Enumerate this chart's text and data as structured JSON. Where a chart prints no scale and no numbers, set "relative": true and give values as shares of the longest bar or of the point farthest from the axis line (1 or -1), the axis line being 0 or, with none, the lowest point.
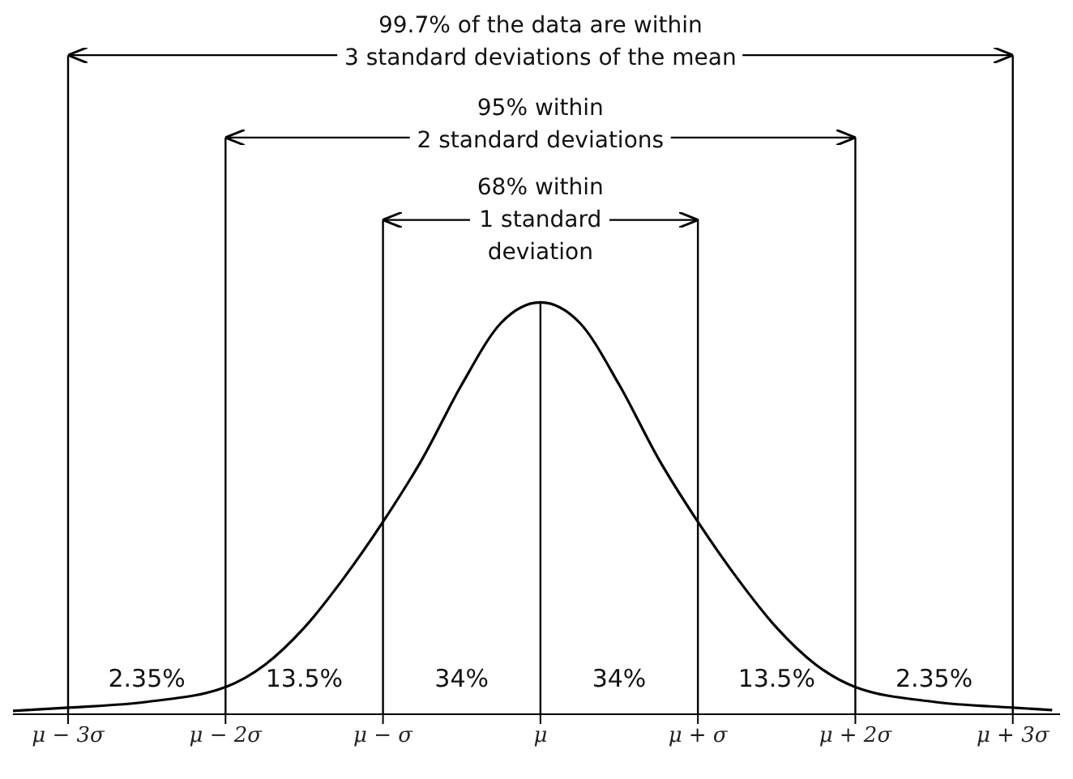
{
  "chart_data": {
    "type": "line",
    "relative": true,
    "marker": "none",
    "grid": false,
    "legend": false,
    "x": [
      -3.35,
      -3,
      -2.5,
      -2,
      -1.75,
      -1.5,
      -1.25,
      -1,
      -0.75,
      -0.5,
      -0.25,
      0,
      0.25,
      0.5,
      0.75,
      1,
      1.25,
      1.5,
      1.75,
      2,
      2.5,
      3,
      3.25
    ],
    "series": [
      {
        "color": "#000000",
        "values": [
          0.008,
          0.016,
          0.03,
          0.066,
          0.12,
          0.21,
          0.33,
          0.467,
          0.62,
          0.8,
          0.95,
          1,
          0.95,
          0.8,
          0.62,
          0.467,
          0.33,
          0.21,
          0.12,
          0.066,
          0.03,
          0.016,
          0.01
        ]
      }
    ],
    "xlim": [
      -3.35,
      3.3
    ],
    "xticks": [
      {
        "value": -3,
        "label": "μ − 3σ"
      },
      {
        "value": -2,
        "label": "μ − 2σ"
      },
      {
        "value": -1,
        "label": "μ − σ"
      },
      {
        "value": 0,
        "label": "μ"
      },
      {
        "value": 1,
        "label": "μ + σ"
      },
      {
        "value": 2,
        "label": "μ + 2σ"
      },
      {
        "value": 3,
        "label": "μ + 3σ"
      }
    ],
    "ref_lines": [
      {
        "axis": "x",
        "value": -3
      },
      {
        "axis": "x",
        "value": -2
      },
      {
        "axis": "x",
        "value": -1
      },
      {
        "axis": "x",
        "value": 0
      },
      {
        "axis": "x",
        "value": 1
      },
      {
        "axis": "x",
        "value": 2
      },
      {
        "axis": "x",
        "value": 3
      }
    ],
    "annotations": [
      "99.7% of the data are within\n3 standard deviations of the mean",
      "95% within\n2 standard deviations",
      "68% within\n1 standard\ndeviation",
      "2.35%",
      "13.5%",
      "34%",
      "34%",
      "13.5%",
      "2.35%"
    ]
  }
}
